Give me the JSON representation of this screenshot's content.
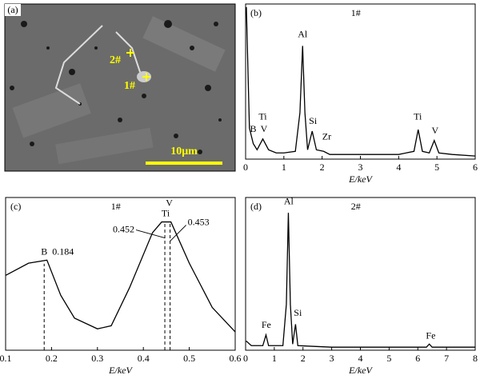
{
  "image_panel": {
    "panel_label": "(a)",
    "points": [
      "2#",
      "1#"
    ],
    "scale_bar": "10μm"
  },
  "chart_data": [
    {
      "type": "line",
      "panel_label": "(b)",
      "title": "1#",
      "x_label": "E/keV",
      "color": "#000000",
      "xlim": [
        0,
        6
      ],
      "xticks": [
        0,
        1,
        2,
        3,
        4,
        5,
        6
      ],
      "ylim": [
        0,
        100
      ],
      "x": [
        0.02,
        0.1,
        0.2,
        0.3,
        0.45,
        0.6,
        0.8,
        1.0,
        1.3,
        1.42,
        1.49,
        1.55,
        1.62,
        1.74,
        1.85,
        2.04,
        2.2,
        3,
        4,
        4.4,
        4.51,
        4.62,
        4.8,
        4.93,
        5.05,
        5.4,
        6
      ],
      "values": [
        98,
        20,
        10,
        6,
        13,
        6,
        4,
        4,
        5,
        30,
        73,
        30,
        6,
        18,
        6,
        5,
        3,
        3,
        3,
        5,
        19,
        5,
        4,
        12,
        4,
        3,
        2
      ],
      "annotations": [
        {
          "text": "Ti",
          "x": 0.45,
          "y": 27
        },
        {
          "text": "B",
          "x": 0.2,
          "y": 19
        },
        {
          "text": "V",
          "x": 0.48,
          "y": 19
        },
        {
          "text": "Al",
          "x": 1.49,
          "y": 80
        },
        {
          "text": "Si",
          "x": 1.76,
          "y": 24
        },
        {
          "text": "Zr",
          "x": 2.12,
          "y": 14
        },
        {
          "text": "Ti",
          "x": 4.5,
          "y": 27
        },
        {
          "text": "V",
          "x": 4.95,
          "y": 18
        }
      ]
    },
    {
      "type": "line",
      "panel_label": "(c)",
      "title": "1#",
      "x_label": "E/keV",
      "color": "#000000",
      "xlim": [
        0.1,
        0.6
      ],
      "xticks": [
        0.1,
        0.2,
        0.3,
        0.4,
        0.5,
        0.6
      ],
      "ylim": [
        0,
        100
      ],
      "x": [
        0.1,
        0.15,
        0.19,
        0.22,
        0.25,
        0.3,
        0.33,
        0.37,
        0.42,
        0.44,
        0.46,
        0.5,
        0.55,
        0.6
      ],
      "values": [
        49,
        57,
        59,
        36,
        21,
        14,
        16,
        41,
        77,
        84,
        84,
        57,
        28,
        12
      ],
      "markers": [
        {
          "element": "B",
          "energy": 0.184
        },
        {
          "element": "Ti",
          "energy": 0.452
        },
        {
          "element": "V",
          "energy": 0.453
        }
      ]
    },
    {
      "type": "line",
      "panel_label": "(d)",
      "title": "2#",
      "x_label": "E/keV",
      "color": "#000000",
      "xlim": [
        0,
        8
      ],
      "xticks": [
        0,
        1,
        2,
        3,
        4,
        5,
        6,
        7,
        8
      ],
      "ylim": [
        0,
        100
      ],
      "x": [
        0.02,
        0.2,
        0.6,
        0.71,
        0.8,
        1.3,
        1.42,
        1.49,
        1.56,
        1.64,
        1.74,
        1.82,
        3,
        6.3,
        6.4,
        6.5,
        8
      ],
      "values": [
        6,
        3,
        3,
        10,
        3,
        3,
        30,
        90,
        30,
        4,
        17,
        3,
        2,
        2,
        4,
        2,
        2
      ],
      "annotations": [
        {
          "text": "Fe",
          "x": 0.72,
          "y": 16
        },
        {
          "text": "Al",
          "x": 1.5,
          "y": 97
        },
        {
          "text": "Si",
          "x": 1.82,
          "y": 24
        },
        {
          "text": "Fe",
          "x": 6.45,
          "y": 9
        }
      ]
    }
  ]
}
